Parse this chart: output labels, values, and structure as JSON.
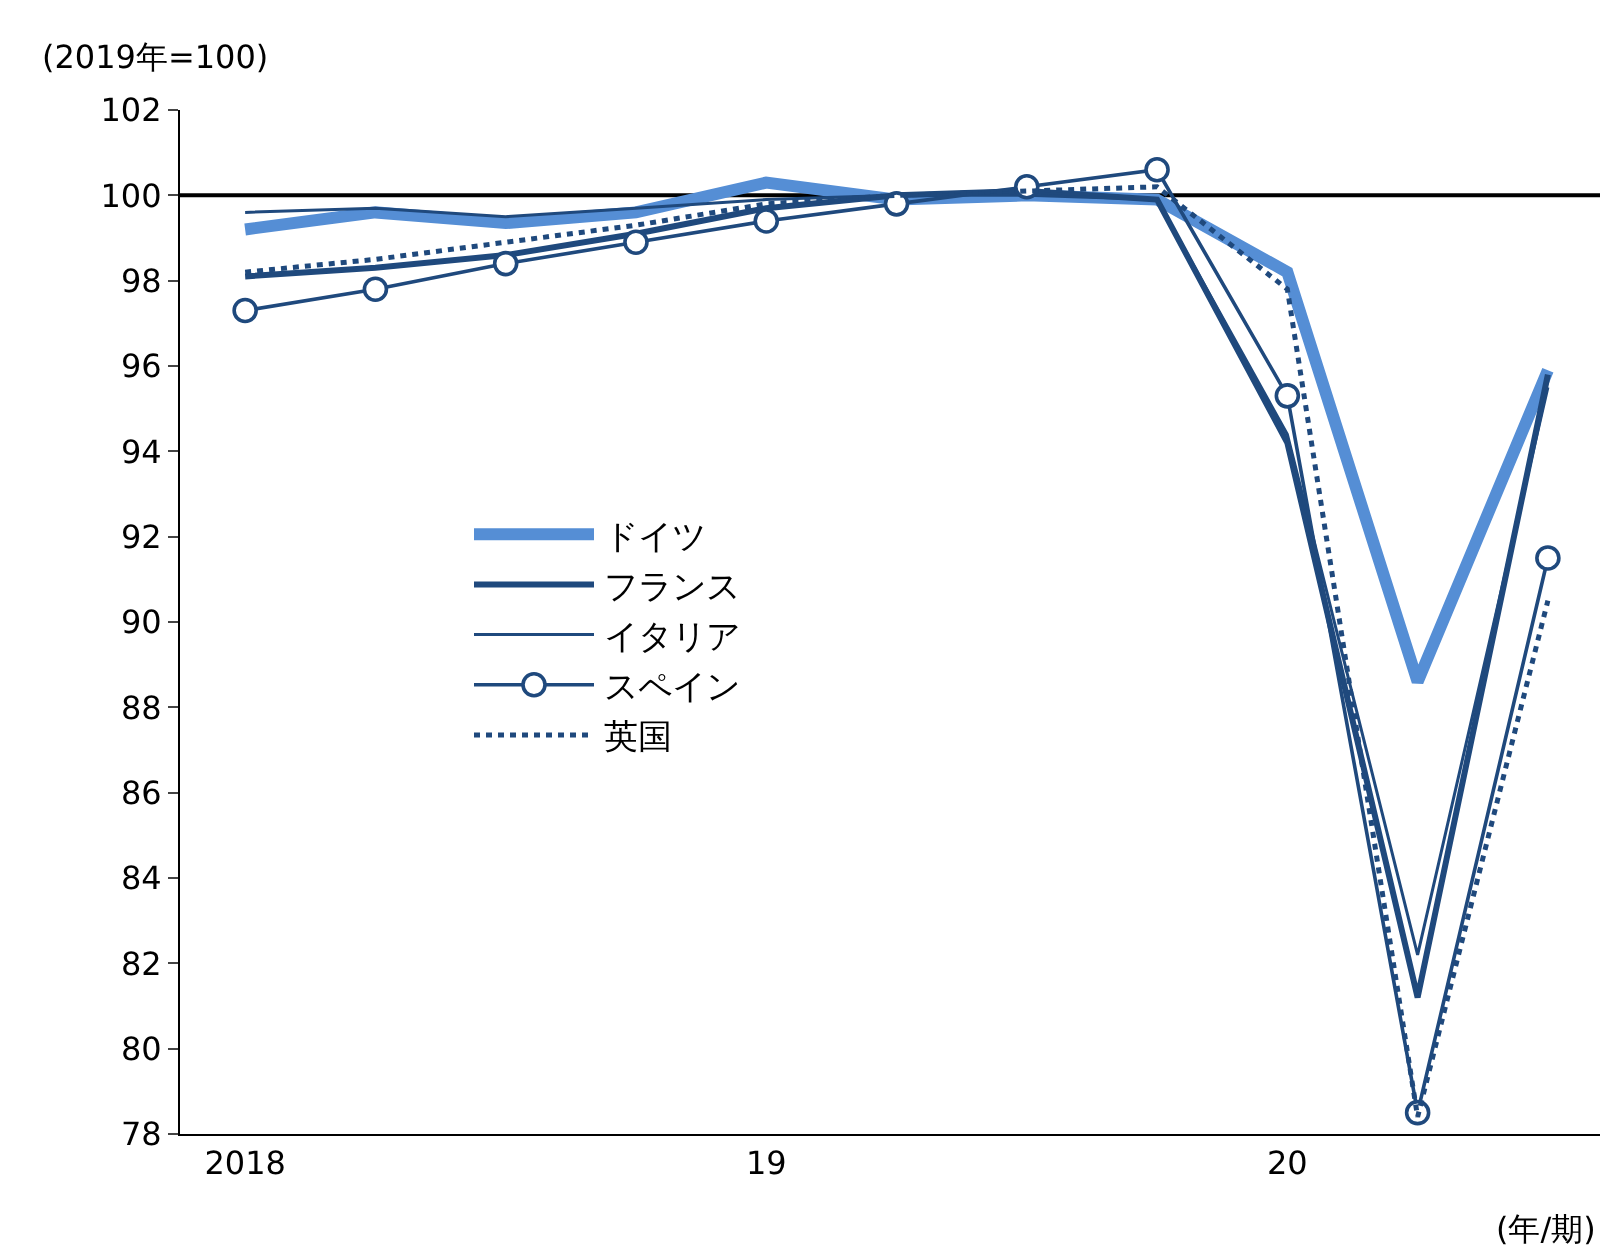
{
  "chart_data": {
    "type": "line",
    "xlabel": "(年/期)",
    "ylabel": "(2019年=100)",
    "categories": [
      "2018",
      null,
      null,
      null,
      "19",
      null,
      null,
      null,
      "20",
      null,
      null
    ],
    "ylim": [
      78,
      102
    ],
    "yticks": [
      78,
      80,
      82,
      84,
      86,
      88,
      90,
      92,
      94,
      96,
      98,
      100,
      102
    ],
    "grid": false,
    "legend": "center",
    "ref_lines": [
      {
        "axis": "y",
        "value": 100,
        "color": "#000000"
      }
    ],
    "series": [
      {
        "name": "ドイツ",
        "color": "#558ed5",
        "values": [
          99.2,
          99.6,
          99.35,
          99.6,
          100.3,
          99.9,
          100.0,
          99.9,
          98.2,
          88.6,
          95.9
        ]
      },
      {
        "name": "フランス",
        "color": "#1f497d",
        "values": [
          98.1,
          98.3,
          98.6,
          99.1,
          99.7,
          100.0,
          100.1,
          99.9,
          94.2,
          81.2,
          95.8
        ]
      },
      {
        "name": "イタリア",
        "color": "#1f497d",
        "values": [
          99.6,
          99.7,
          99.5,
          99.7,
          99.9,
          100.0,
          100.0,
          99.9,
          94.4,
          82.2,
          95.5
        ]
      },
      {
        "name": "スペイン",
        "color": "#1f497d",
        "marker": "circle",
        "values": [
          97.3,
          97.8,
          98.4,
          98.9,
          99.4,
          99.8,
          100.2,
          100.6,
          95.3,
          78.5,
          91.5
        ]
      },
      {
        "name": "英国",
        "color": "#1f497d",
        "line_style": "dotted",
        "values": [
          98.2,
          98.5,
          98.9,
          99.3,
          99.8,
          100.0,
          100.1,
          100.2,
          97.8,
          78.4,
          90.5
        ]
      }
    ]
  }
}
